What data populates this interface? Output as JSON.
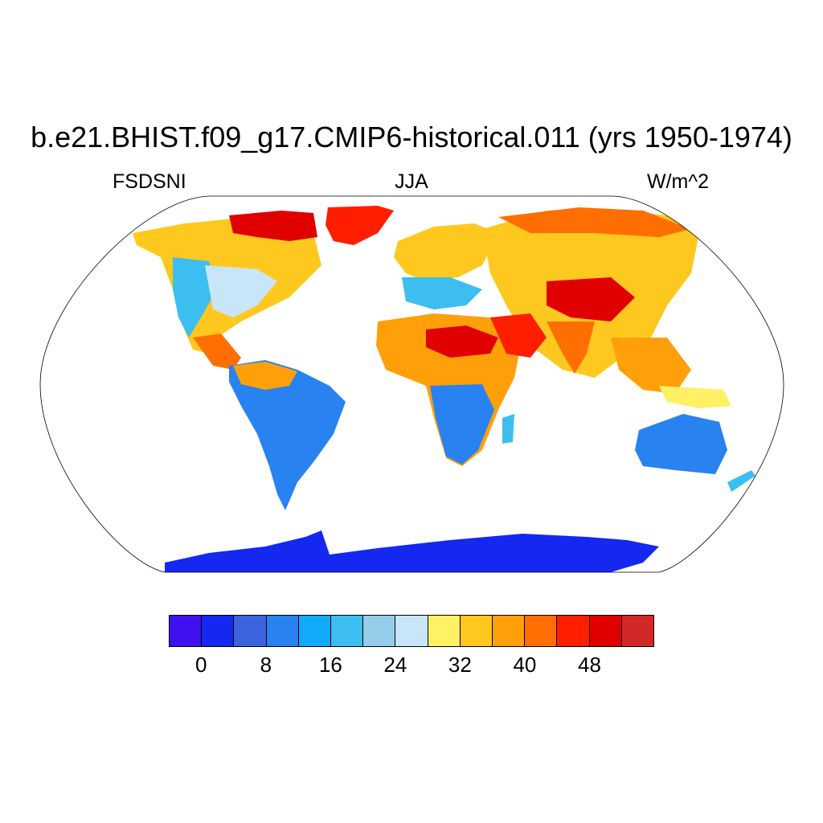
{
  "title": "b.e21.BHIST.f09_g17.CMIP6-historical.011 (yrs 1950-1974)",
  "left_label": "FSDSNI",
  "center_label": "JJA",
  "right_label": "W/m^2",
  "projection": "Robinson",
  "colorbar": {
    "colors": [
      "#4010f0",
      "#1428f0",
      "#3c64e0",
      "#2882f0",
      "#10aaf8",
      "#3cbef0",
      "#96cdeb",
      "#c8e6f8",
      "#fff064",
      "#ffc81e",
      "#ffa00a",
      "#ff6e00",
      "#ff1e00",
      "#e10000",
      "#d22828"
    ],
    "tick_labels": [
      "0",
      "8",
      "16",
      "24",
      "32",
      "40",
      "48"
    ]
  },
  "chart_data": {
    "type": "heatmap",
    "variable": "FSDSNI",
    "season": "JJA",
    "units": "W/m^2",
    "levels": [
      -2,
      0,
      2,
      4,
      6,
      8,
      10,
      12,
      14,
      16,
      18,
      20,
      22,
      24,
      26,
      28,
      30,
      32,
      34,
      36,
      38,
      40,
      42,
      44,
      46,
      48,
      50,
      52,
      54
    ]
  }
}
